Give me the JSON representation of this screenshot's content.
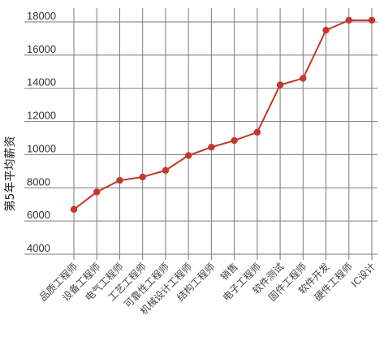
{
  "chart_data": {
    "type": "line",
    "title": "",
    "xlabel": "",
    "ylabel": "第5年平均薪资",
    "categories": [
      "品质工程师",
      "设备工程师",
      "电气工程师",
      "工艺工程师",
      "可靠性工程师",
      "机械设计工程师",
      "结构工程师",
      "销售",
      "电子工程师",
      "软件测试",
      "固件工程师",
      "软件开发",
      "硬件工程师",
      "IC设计"
    ],
    "values": [
      6700,
      7750,
      8450,
      8650,
      9050,
      9950,
      10450,
      10850,
      11350,
      14200,
      14600,
      17500,
      18100,
      18100
    ],
    "ylim": [
      3000,
      18500
    ],
    "yticks": [
      4000,
      6000,
      8000,
      10000,
      12000,
      14000,
      16000,
      18000
    ],
    "grid": true,
    "legend": "none",
    "series_color": "#c0392b"
  }
}
